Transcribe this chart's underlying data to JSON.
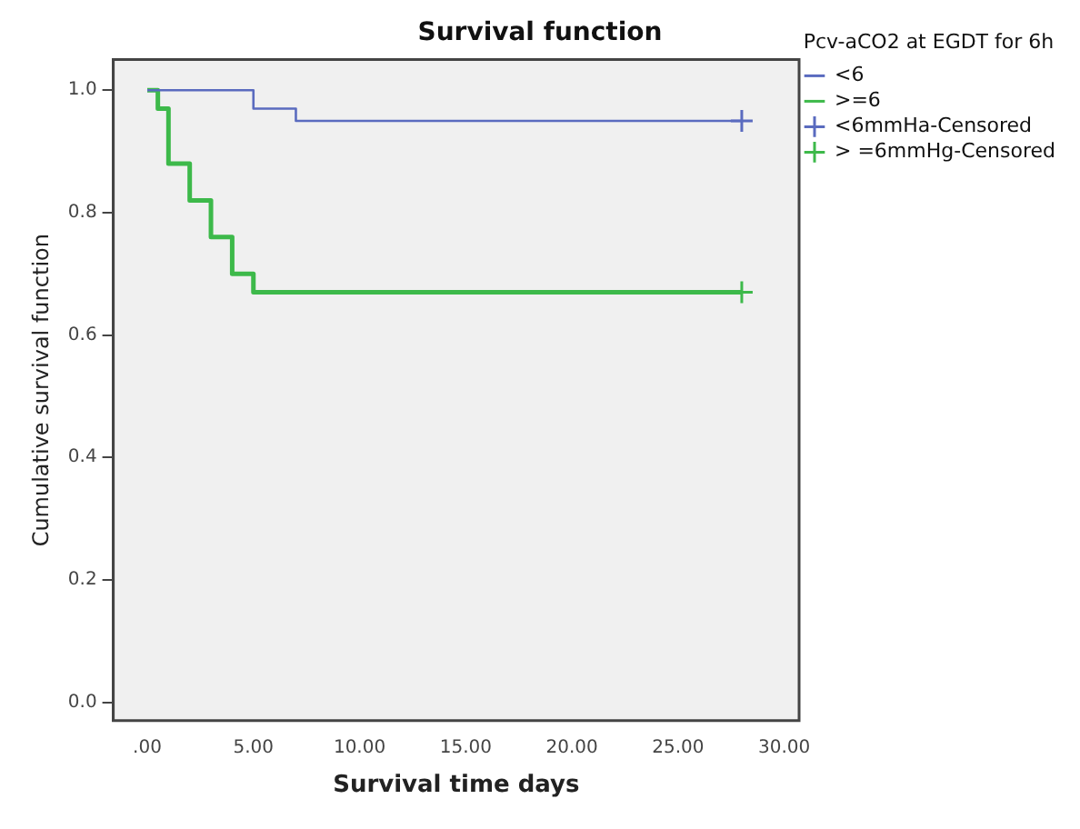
{
  "chart_data": {
    "type": "step",
    "title": "Survival function",
    "xlabel": "Survival time days",
    "ylabel": "Cumulative survival function",
    "legend_title": "Pcv-aCO2 at EGDT for 6h",
    "series": [
      {
        "name": "<6",
        "color": "#5a6bbf",
        "x": [
          0,
          5,
          7,
          28
        ],
        "values": [
          1.0,
          0.97,
          0.95,
          0.95
        ],
        "marker": "none"
      },
      {
        "name": ">=6",
        "color": "#3db94a",
        "x": [
          0,
          0.5,
          1,
          2,
          3,
          4,
          5,
          28
        ],
        "values": [
          1.0,
          0.97,
          0.88,
          0.82,
          0.76,
          0.7,
          0.67,
          0.67
        ],
        "marker": "none"
      },
      {
        "name": "<6mmHa-Censored",
        "type": "scatter",
        "color": "#5a6bbf",
        "x": [
          28
        ],
        "values": [
          0.95
        ],
        "marker": "cross"
      },
      {
        "name": "> =6mmHg-Censored",
        "type": "scatter",
        "color": "#3db94a",
        "x": [
          28
        ],
        "values": [
          0.67
        ],
        "marker": "cross"
      }
    ],
    "xlim": [
      -1.6,
      30.7
    ],
    "xticks": [
      {
        "value": 0,
        "label": ".00"
      },
      {
        "value": 5,
        "label": "5.00"
      },
      {
        "value": 10,
        "label": "10.00"
      },
      {
        "value": 15,
        "label": "15.00"
      },
      {
        "value": 20,
        "label": "20.00"
      },
      {
        "value": 25,
        "label": "25.00"
      },
      {
        "value": 30,
        "label": "30.00"
      }
    ],
    "ylim": [
      -0.03,
      1.05
    ],
    "yticks": [
      {
        "value": 0,
        "label": "0.0"
      },
      {
        "value": 0.2,
        "label": "0.2"
      },
      {
        "value": 0.4,
        "label": "0.4"
      },
      {
        "value": 0.6,
        "label": "0.6"
      },
      {
        "value": 0.8,
        "label": "0.8"
      },
      {
        "value": 1,
        "label": "1.0"
      }
    ],
    "grid": false,
    "legend": "top right"
  }
}
